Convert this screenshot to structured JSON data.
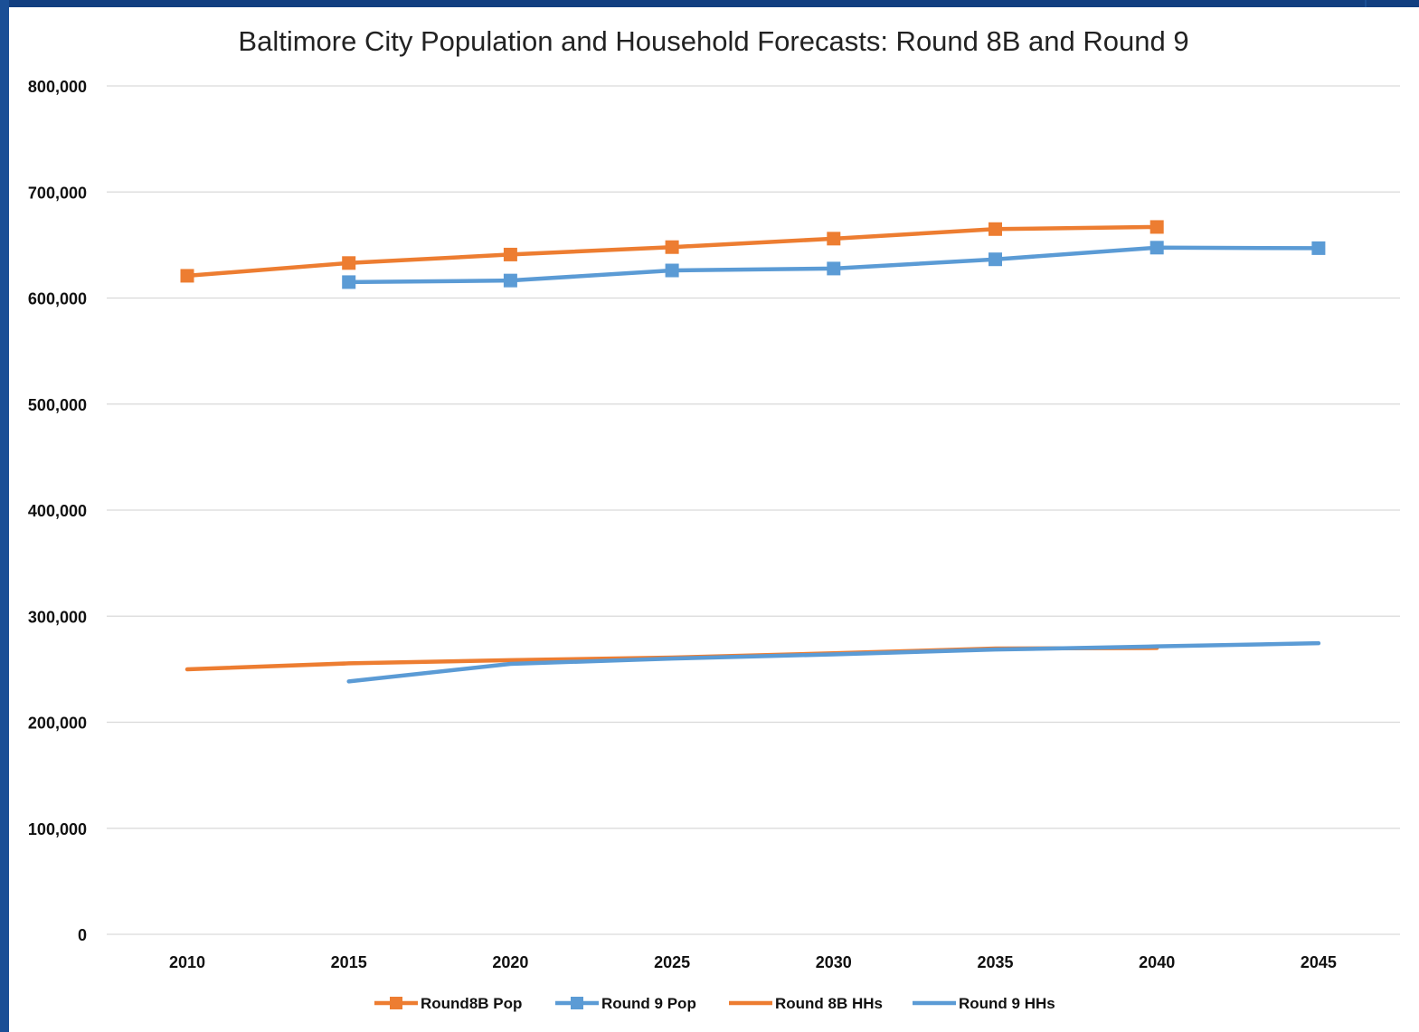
{
  "chart_data": {
    "type": "line",
    "title": "Baltimore City Population and Household  Forecasts: Round 8B and Round 9",
    "xlabel": "",
    "ylabel": "",
    "categories": [
      "2010",
      "2015",
      "2020",
      "2025",
      "2030",
      "2035",
      "2040",
      "2045"
    ],
    "ylim": [
      0,
      800000
    ],
    "yticks": [
      0,
      100000,
      200000,
      300000,
      400000,
      500000,
      600000,
      700000,
      800000
    ],
    "ytick_labels": [
      "0",
      "100,000",
      "200,000",
      "300,000",
      "400,000",
      "500,000",
      "600,000",
      "700,000",
      "800,000"
    ],
    "grid": true,
    "legend_position": "bottom",
    "series": [
      {
        "name": "Round8B Pop",
        "color": "#ed7d31",
        "marker": "square",
        "values": [
          620961,
          633000,
          641000,
          648000,
          656000,
          665000,
          667000,
          null
        ]
      },
      {
        "name": "Round 9 Pop",
        "color": "#5b9bd5",
        "marker": "square",
        "values": [
          null,
          615000,
          616500,
          626000,
          627800,
          636500,
          647500,
          647000
        ]
      },
      {
        "name": "Round 8B HHs",
        "color": "#ed7d31",
        "marker": "none",
        "values": [
          249903,
          255500,
          258500,
          261000,
          265000,
          269500,
          270000,
          null
        ]
      },
      {
        "name": "Round 9 HHs",
        "color": "#5b9bd5",
        "marker": "none",
        "values": [
          null,
          238500,
          255000,
          260000,
          264000,
          268500,
          271500,
          274500
        ]
      }
    ]
  }
}
